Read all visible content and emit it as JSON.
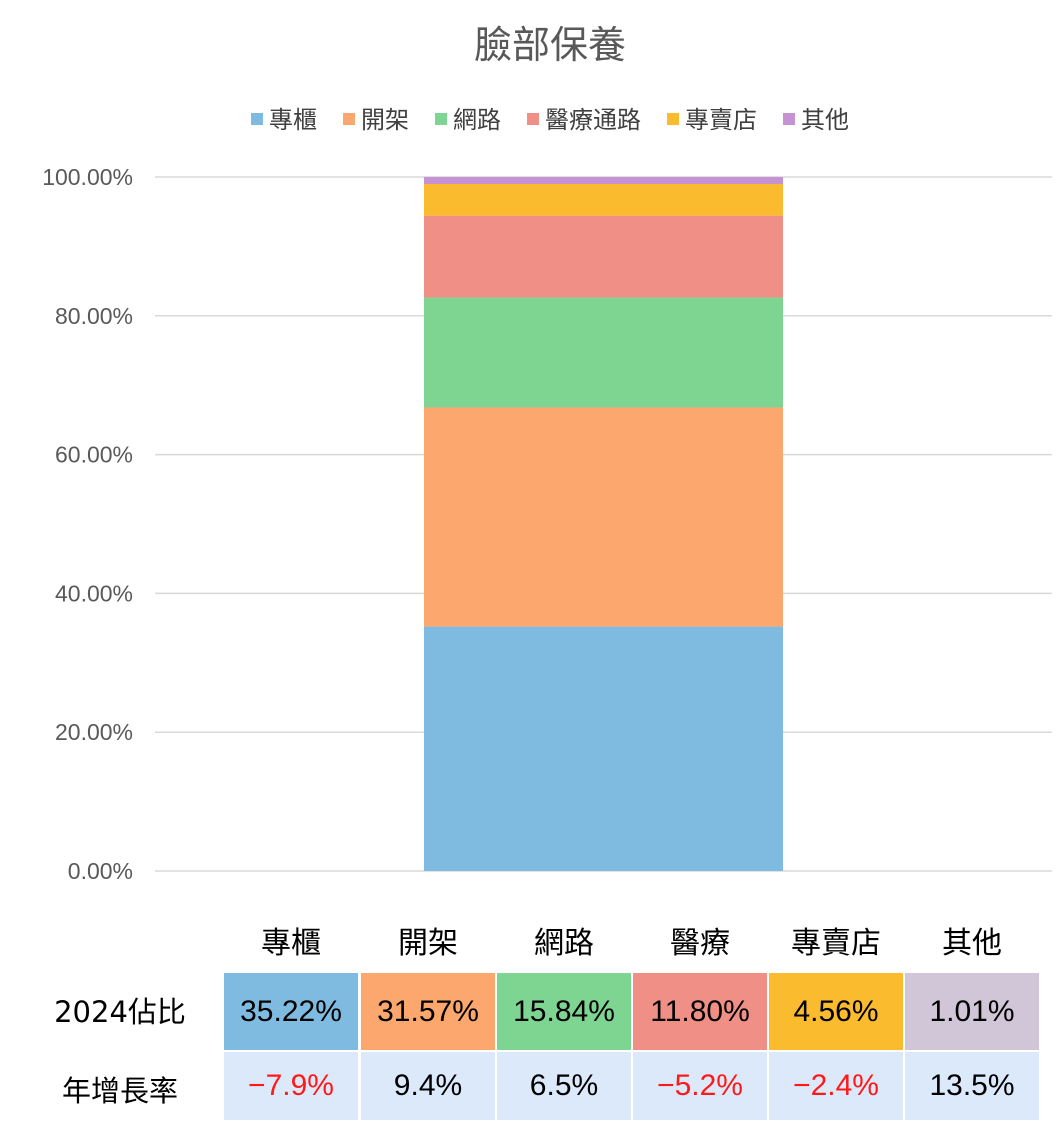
{
  "chart_data": {
    "type": "bar",
    "stacked": true,
    "title": "臉部保養",
    "categories": [
      ""
    ],
    "series": [
      {
        "name": "專櫃",
        "values": [
          35.22
        ],
        "color": "#7fbbe0"
      },
      {
        "name": "開架",
        "values": [
          31.57
        ],
        "color": "#fca76e"
      },
      {
        "name": "網路",
        "values": [
          15.84
        ],
        "color": "#7ed592"
      },
      {
        "name": "醫療通路",
        "values": [
          11.8
        ],
        "color": "#f08f86"
      },
      {
        "name": "專賣店",
        "values": [
          4.56
        ],
        "color": "#fbbb2f"
      },
      {
        "name": "其他",
        "values": [
          1.01
        ],
        "color": "#c592d4"
      }
    ],
    "y_ticks": [
      "100.00%",
      "80.00%",
      "60.00%",
      "40.00%",
      "20.00%",
      "0.00%"
    ],
    "y_tick_values": [
      100,
      80,
      60,
      40,
      20,
      0
    ],
    "ylim": [
      0,
      100
    ],
    "grid": true,
    "legend_position": "top"
  },
  "table": {
    "column_headers": [
      "專櫃",
      "開架",
      "網路",
      "醫療",
      "專賣店",
      "其他"
    ],
    "rows": [
      {
        "label": "2024佔比",
        "cells": [
          {
            "text": "35.22%",
            "color": "#7fbbe0"
          },
          {
            "text": "31.57%",
            "color": "#fca76e"
          },
          {
            "text": "15.84%",
            "color": "#7ed592"
          },
          {
            "text": "11.80%",
            "color": "#f08f86"
          },
          {
            "text": "4.56%",
            "color": "#fbbb2f"
          },
          {
            "text": "1.01%",
            "color": "#d1c6d7"
          }
        ]
      },
      {
        "label": "年增長率",
        "cells": [
          {
            "text": "−7.9%",
            "negative": true
          },
          {
            "text": "9.4%",
            "negative": false
          },
          {
            "text": "6.5%",
            "negative": false
          },
          {
            "text": "−5.2%",
            "negative": true
          },
          {
            "text": "−2.4%",
            "negative": true
          },
          {
            "text": "13.5%",
            "negative": false
          }
        ]
      }
    ]
  }
}
